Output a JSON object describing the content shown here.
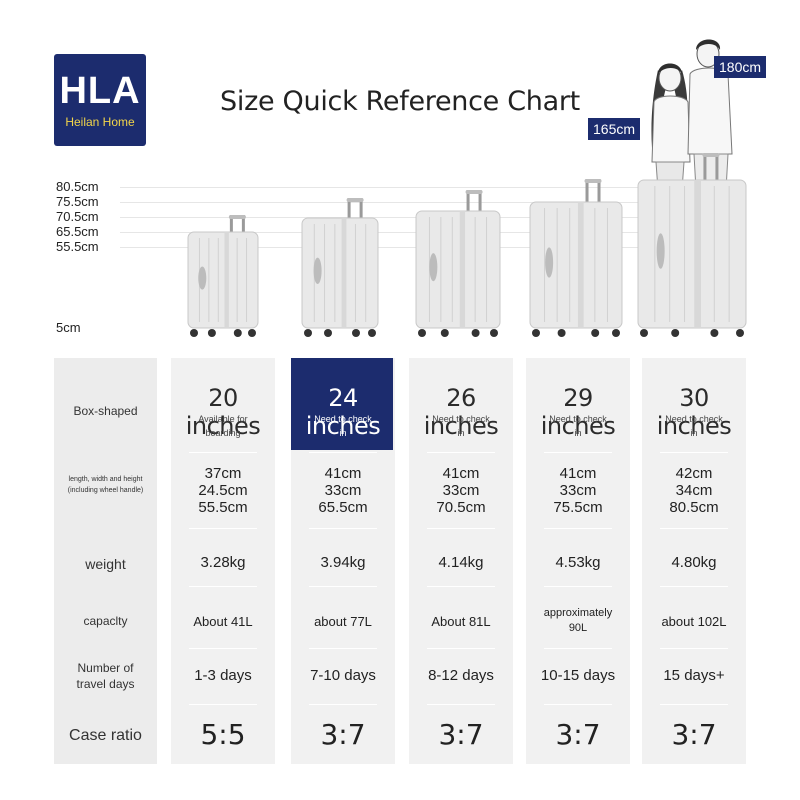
{
  "brand": {
    "mark": "HLA",
    "name": "Heilan Home"
  },
  "title": "Size Quick Reference Chart",
  "heights": [
    "80.5cm",
    "75.5cm",
    "70.5cm",
    "65.5cm",
    "55.5cm"
  ],
  "base_mark": "5cm",
  "people": [
    {
      "height": "165cm"
    },
    {
      "height": "180cm"
    }
  ],
  "row_labels": {
    "type": "Box-shaped",
    "dims": "length, width and height (including wheel handle)",
    "weight": "weight",
    "capacity": "capaclty",
    "days": "Number of travel days",
    "ratio": "Case ratio"
  },
  "sizes": [
    {
      "name": "20 inches",
      "note": "Available for boarding",
      "dims": [
        "37cm",
        "24.5cm",
        "55.5cm"
      ],
      "weight": "3.28kg",
      "capacity": "About 41L",
      "days": "1-3 days",
      "ratio": "5:5",
      "highlight": false
    },
    {
      "name": "24 inches",
      "note": "Need to check in",
      "dims": [
        "41cm",
        "33cm",
        "65.5cm"
      ],
      "weight": "3.94kg",
      "capacity": "about 77L",
      "days": "7-10 days",
      "ratio": "3:7",
      "highlight": true
    },
    {
      "name": "26 inches",
      "note": "Need to check in",
      "dims": [
        "41cm",
        "33cm",
        "70.5cm"
      ],
      "weight": "4.14kg",
      "capacity": "About 81L",
      "days": "8-12 days",
      "ratio": "3:7",
      "highlight": false
    },
    {
      "name": "29 inches",
      "note": "Need to check in",
      "dims": [
        "41cm",
        "33cm",
        "75.5cm"
      ],
      "weight": "4.53kg",
      "capacity": "approximately 90L",
      "days": "10-15 days",
      "ratio": "3:7",
      "highlight": false
    },
    {
      "name": "30 inches",
      "note": "Need to check in",
      "dims": [
        "42cm",
        "34cm",
        "80.5cm"
      ],
      "weight": "4.80kg",
      "capacity": "about 102L",
      "days": "15 days+",
      "ratio": "3:7",
      "highlight": false
    }
  ],
  "colors": {
    "navy": "#1c2c6e",
    "logo_text": "#f2d54a",
    "table_bg": "#f1f1f1",
    "suitcase": "#e9e9e9"
  }
}
